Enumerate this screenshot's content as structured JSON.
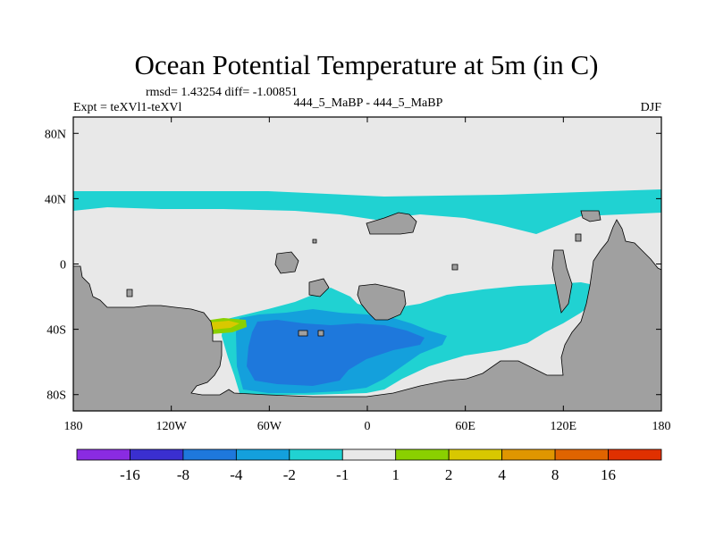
{
  "chart_data": {
    "type": "heatmap",
    "title": "Ocean Potential Temperature at 5m (in C)",
    "stats_line": "rmsd= 1.43254 diff= -1.00851",
    "left_label": "Expt = teXVl1-teXVl",
    "center_label": "444_5_MaBP - 444_5_MaBP",
    "right_label": "DJF",
    "x_axis": {
      "range": [
        -180,
        180
      ],
      "ticks": [
        -180,
        -120,
        -60,
        0,
        60,
        120,
        180
      ],
      "tick_labels": [
        "180",
        "120W",
        "60W",
        "0",
        "60E",
        "120E",
        "180"
      ]
    },
    "y_axis": {
      "range": [
        -90,
        90
      ],
      "ticks": [
        80,
        40,
        0,
        -40,
        -80
      ],
      "tick_labels": [
        "80N",
        "40N",
        "0",
        "40S",
        "80S"
      ]
    },
    "colorbar": {
      "labels": [
        "-16",
        "-8",
        "-4",
        "-2",
        "-1",
        "1",
        "2",
        "4",
        "8",
        "16"
      ],
      "colors": [
        "#8a2be2",
        "#3a2fd0",
        "#1e78dc",
        "#14a0dc",
        "#20d2d2",
        "#e8e8e8",
        "#8ad000",
        "#d8c800",
        "#e09600",
        "#e06400",
        "#e03000"
      ]
    },
    "colors": {
      "background_field": "#e8e8e8",
      "land": "#a0a0a0",
      "cyan_anomaly": "#20d2d2",
      "light_blue_anomaly": "#14a0dc",
      "blue_anomaly": "#1e78dc",
      "green_anomaly": "#8ad000",
      "yellow_anomaly": "#d8c800"
    }
  }
}
